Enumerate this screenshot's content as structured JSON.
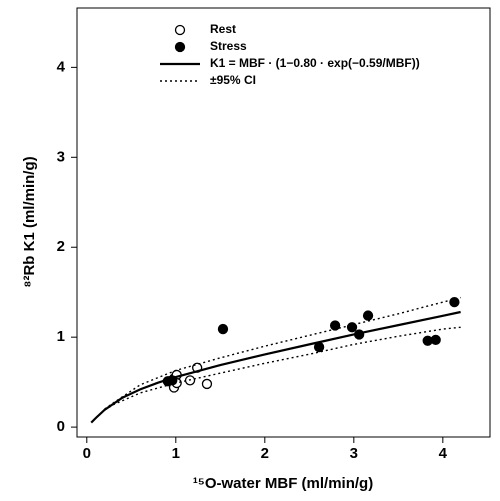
{
  "chart_data": {
    "type": "scatter",
    "xlabel": "¹⁵O-water MBF (ml/min/g)",
    "ylabel": "⁸²Rb K1 (ml/min/g)",
    "xlim": [
      -0.11,
      4.53
    ],
    "ylim": [
      -0.11,
      4.66
    ],
    "xticks": [
      0,
      1,
      2,
      3,
      4
    ],
    "yticks": [
      0,
      1,
      2,
      3,
      4
    ],
    "legend": "top-left",
    "series": [
      {
        "name": "Rest",
        "type": "scatter",
        "marker": "open",
        "color": "#000000",
        "x": [
          0.93,
          0.98,
          1.01,
          0.98,
          1.01,
          1.16,
          1.24,
          1.35
        ],
        "values": [
          0.51,
          0.54,
          0.58,
          0.44,
          0.49,
          0.52,
          0.66,
          0.48
        ]
      },
      {
        "name": "Stress",
        "type": "scatter",
        "marker": "filled",
        "color": "#000000",
        "x": [
          0.91,
          0.96,
          1.53,
          2.61,
          2.79,
          2.98,
          3.06,
          3.16,
          3.83,
          3.92,
          4.13
        ],
        "values": [
          0.51,
          0.52,
          1.09,
          0.89,
          1.13,
          1.11,
          1.03,
          1.24,
          0.96,
          0.97,
          1.39
        ]
      },
      {
        "name": "K1 = MBF · (1−0.80 · exp(−0.59/MBF))",
        "type": "line",
        "dash": "solid",
        "color": "#000000",
        "x": [
          0.05,
          0.1,
          0.2,
          0.4,
          0.6,
          0.8,
          1.0,
          1.5,
          2.0,
          2.5,
          3.0,
          3.5,
          4.0,
          4.2
        ],
        "values": [
          0.05,
          0.0998,
          0.192,
          0.327,
          0.42,
          0.494,
          0.557,
          0.69,
          0.808,
          0.92,
          1.03,
          1.134,
          1.238,
          1.28
        ]
      },
      {
        "name": "±95% CI",
        "type": "band",
        "dash": "dotted",
        "color": "#000000",
        "x": [
          0.2,
          0.3,
          0.6,
          1.0,
          1.5,
          2.0,
          2.5,
          3.0,
          3.5,
          4.0,
          4.2
        ],
        "upper": [
          0.2,
          0.27,
          0.47,
          0.63,
          0.77,
          0.9,
          1.02,
          1.14,
          1.26,
          1.39,
          1.44
        ],
        "lower": [
          0.19,
          0.25,
          0.38,
          0.49,
          0.6,
          0.71,
          0.81,
          0.92,
          1.01,
          1.09,
          1.11
        ]
      }
    ]
  }
}
